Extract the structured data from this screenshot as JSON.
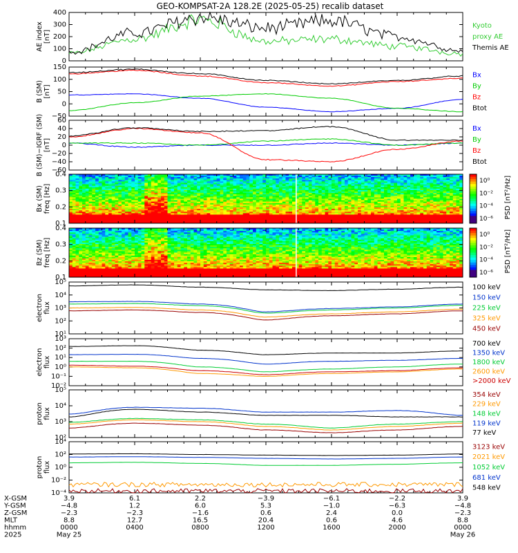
{
  "title": "GEO-KOMPSAT-2A 128.2E (2025-05-25) recalib dataset",
  "colors": {
    "black": "#000000",
    "blue": "#0000ff",
    "green": "#00cc00",
    "red": "#ff0000",
    "lime": "#33dd33",
    "orange": "#ff9900",
    "darkred": "#990000",
    "navy": "#0033cc"
  },
  "panels": [
    {
      "id": "ae",
      "ylabel": [
        "AE index",
        "[nT]"
      ],
      "ticks": [
        "400",
        "300",
        "200",
        "100",
        "0"
      ],
      "legend": [
        {
          "text": "Kyoto",
          "color": "#33cc33"
        },
        {
          "text": "proxy AE",
          "color": "#33cc33"
        },
        {
          "text": "Themis AE",
          "color": "#000000"
        }
      ]
    },
    {
      "id": "bsm",
      "ylabel": [
        "B (SM)",
        "[nT]"
      ],
      "ticks": [
        "150",
        "100",
        "50",
        "0",
        "−50"
      ],
      "legend": [
        {
          "text": "Bx",
          "color": "#0000ff"
        },
        {
          "text": "By",
          "color": "#00cc00"
        },
        {
          "text": "Bz",
          "color": "#ff0000"
        },
        {
          "text": "Btot",
          "color": "#000000"
        }
      ]
    },
    {
      "id": "bigrf",
      "ylabel": [
        "B (SM)−IGRF (SM)",
        "[nT]"
      ],
      "ticks": [
        "60",
        "40",
        "20",
        "0",
        "−20",
        "−40",
        "−60"
      ],
      "legend": [
        {
          "text": "Bx",
          "color": "#0000ff"
        },
        {
          "text": "By",
          "color": "#00cc00"
        },
        {
          "text": "Bz",
          "color": "#ff0000"
        },
        {
          "text": "Btot",
          "color": "#000000"
        }
      ]
    },
    {
      "id": "specx",
      "ylabel": [
        "Bx (SM)",
        "freq [Hz]"
      ],
      "ticks": [
        "0.4",
        "0.3",
        "0.2",
        "0.1"
      ],
      "cbar": {
        "label": "PSD [nT²/Hz]",
        "ticks": [
          "10⁰",
          "10⁻²",
          "10⁻⁴",
          "10⁻⁶"
        ],
        "top": "10⁰"
      }
    },
    {
      "id": "specz",
      "ylabel": [
        "Bz (SM)",
        "freq [Hz]"
      ],
      "ticks": [
        "0.4",
        "0.3",
        "0.2",
        "0.1"
      ],
      "cbar": {
        "label": "PSD [nT²/Hz]",
        "ticks": [
          "10⁰",
          "10⁻²",
          "10⁻⁴",
          "10⁻⁶"
        ],
        "top": "10⁰"
      }
    },
    {
      "id": "elow",
      "ylabel": [
        "electron",
        "flux"
      ],
      "ticks": [
        "10⁵",
        "10⁴",
        "10³",
        "10²",
        "10¹"
      ],
      "legend": [
        {
          "text": "100 keV",
          "color": "#000000"
        },
        {
          "text": "150 keV",
          "color": "#0033cc"
        },
        {
          "text": "225 keV",
          "color": "#00cc33"
        },
        {
          "text": "325 keV",
          "color": "#ff9900"
        },
        {
          "text": "450 keV",
          "color": "#990000"
        }
      ]
    },
    {
      "id": "ehigh",
      "ylabel": [
        "electron",
        "flux"
      ],
      "ticks": [
        "10³",
        "10²",
        "10¹",
        "10⁰",
        "10⁻¹",
        "10⁻²"
      ],
      "legend": [
        {
          "text": "700 keV",
          "color": "#000000"
        },
        {
          "text": "1350 keV",
          "color": "#0033cc"
        },
        {
          "text": "1800 keV",
          "color": "#00cc33"
        },
        {
          "text": "2600 keV",
          "color": "#ff9900"
        },
        {
          "text": ">2000 keV",
          "color": "#cc0000"
        }
      ]
    },
    {
      "id": "plow",
      "ylabel": [
        "proton",
        "flux"
      ],
      "ticks": [
        "10⁵",
        "10⁴",
        "10³",
        "10²"
      ],
      "legend": [
        {
          "text": "354 keV",
          "color": "#990000"
        },
        {
          "text": "229 keV",
          "color": "#ff9900"
        },
        {
          "text": "148 keV",
          "color": "#00cc33"
        },
        {
          "text": "119 keV",
          "color": "#0033cc"
        },
        {
          "text": "77 keV",
          "color": "#000000"
        }
      ]
    },
    {
      "id": "phigh",
      "ylabel": [
        "proton",
        "flux"
      ],
      "ticks": [
        "10⁴",
        "10²",
        "10⁰",
        "10⁻²",
        "10⁻⁴"
      ],
      "legend": [
        {
          "text": "3123 keV",
          "color": "#990000"
        },
        {
          "text": "2021 keV",
          "color": "#ff9900"
        },
        {
          "text": "1052 keV",
          "color": "#00cc33"
        },
        {
          "text": "681 keV",
          "color": "#0033cc"
        },
        {
          "text": "548 keV",
          "color": "#000000"
        }
      ]
    }
  ],
  "footer": {
    "row_labels": [
      "X-GSM",
      "Y-GSM",
      "Z-GSM",
      "MLT",
      "hhmm",
      "2025"
    ],
    "columns": [
      [
        "3.9",
        "−4.8",
        "−2.3",
        "8.8",
        "0000",
        "May 25"
      ],
      [
        "6.1",
        "1.2",
        "−2.3",
        "12.7",
        "0400",
        ""
      ],
      [
        "2.2",
        "6.0",
        "−1.6",
        "16.5",
        "0800",
        ""
      ],
      [
        "−3.9",
        "5.3",
        "0.6",
        "20.4",
        "1200",
        ""
      ],
      [
        "−6.1",
        "−1.0",
        "2.4",
        "0.6",
        "1600",
        ""
      ],
      [
        "−2.2",
        "−6.3",
        "0.0",
        "4.6",
        "2000",
        ""
      ],
      [
        "3.9",
        "−4.8",
        "−2.3",
        "8.8",
        "0000",
        "May 26"
      ]
    ]
  },
  "chart_data": [
    {
      "type": "line",
      "title": "GEO-KOMPSAT-2A 128.2E (2025-05-25) recalib dataset",
      "ylabel": "AE index [nT]",
      "ylim": [
        0,
        400
      ],
      "x": [
        "0000",
        "0400",
        "0800",
        "1200",
        "1600",
        "2000",
        "0000"
      ],
      "series": [
        {
          "name": "Kyoto proxy AE",
          "values": [
            60,
            180,
            340,
            160,
            180,
            120,
            60
          ]
        },
        {
          "name": "Themis AE",
          "values": [
            70,
            230,
            360,
            270,
            330,
            200,
            80
          ]
        }
      ]
    },
    {
      "type": "line",
      "ylabel": "B (SM) [nT]",
      "ylim": [
        -60,
        160
      ],
      "x": [
        "0000",
        "0400",
        "0800",
        "1200",
        "1600",
        "2000",
        "0000"
      ],
      "series": [
        {
          "name": "Bx",
          "values": [
            35,
            40,
            20,
            -20,
            -40,
            -25,
            15
          ]
        },
        {
          "name": "By",
          "values": [
            -35,
            0,
            30,
            40,
            20,
            -25,
            -40
          ]
        },
        {
          "name": "Bz",
          "values": [
            130,
            145,
            120,
            90,
            75,
            95,
            110
          ]
        },
        {
          "name": "Btot",
          "values": [
            135,
            150,
            130,
            100,
            85,
            100,
            120
          ]
        }
      ]
    },
    {
      "type": "line",
      "ylabel": "B (SM)-IGRF (SM) [nT]",
      "ylim": [
        -60,
        60
      ],
      "x": [
        "0000",
        "0400",
        "0800",
        "1200",
        "1600",
        "2000",
        "0000"
      ],
      "series": [
        {
          "name": "Bx",
          "values": [
            5,
            -5,
            0,
            0,
            5,
            0,
            5
          ]
        },
        {
          "name": "By",
          "values": [
            5,
            5,
            0,
            10,
            15,
            0,
            5
          ]
        },
        {
          "name": "Bz",
          "values": [
            20,
            40,
            30,
            -35,
            -40,
            -10,
            10
          ]
        },
        {
          "name": "Btot",
          "values": [
            22,
            42,
            33,
            35,
            45,
            12,
            12
          ]
        }
      ]
    },
    {
      "type": "heatmap",
      "ylabel": "Bx (SM) freq [Hz]",
      "ylim": [
        0.05,
        0.5
      ],
      "colorbar": "PSD [nT²/Hz]"
    },
    {
      "type": "heatmap",
      "ylabel": "Bz (SM) freq [Hz]",
      "ylim": [
        0.05,
        0.5
      ],
      "colorbar": "PSD [nT²/Hz]"
    },
    {
      "type": "line",
      "ylabel": "electron flux",
      "log": true,
      "ylim": [
        "10¹",
        "10⁵"
      ],
      "x": [
        "0000",
        "0400",
        "0800",
        "1200",
        "1600",
        "2000",
        "0000"
      ],
      "series": [
        {
          "name": "100 keV",
          "values": [
            50000,
            60000,
            40000,
            25000,
            22000,
            28000,
            40000
          ]
        },
        {
          "name": "150 keV",
          "values": [
            3000,
            3200,
            2000,
            500,
            900,
            1200,
            2000
          ]
        },
        {
          "name": "225 keV",
          "values": [
            2000,
            2200,
            1500,
            400,
            700,
            1000,
            1600
          ]
        },
        {
          "name": "325 keV",
          "values": [
            1000,
            1100,
            700,
            200,
            350,
            500,
            800
          ]
        },
        {
          "name": "450 keV",
          "values": [
            600,
            700,
            450,
            120,
            250,
            350,
            600
          ]
        }
      ]
    },
    {
      "type": "line",
      "ylabel": "electron flux",
      "log": true,
      "ylim": [
        "10⁻²",
        "10³"
      ],
      "x": [
        "0000",
        "0400",
        "0800",
        "1200",
        "1600",
        "2000",
        "0000"
      ],
      "series": [
        {
          "name": "700 keV",
          "values": [
            150,
            180,
            60,
            20,
            30,
            30,
            50
          ]
        },
        {
          "name": "1350 keV",
          "values": [
            20,
            22,
            8,
            2,
            4,
            5,
            8
          ]
        },
        {
          "name": "1800 keV",
          "values": [
            4,
            4,
            1,
            0.3,
            0.6,
            1,
            2
          ]
        },
        {
          "name": "2600 keV",
          "values": [
            1,
            0.8,
            0.2,
            0.1,
            0.2,
            0.3,
            0.6
          ]
        },
        {
          "name": ">2000 keV",
          "values": [
            1.5,
            1.2,
            0.4,
            0.15,
            0.3,
            0.4,
            0.8
          ]
        }
      ]
    },
    {
      "type": "line",
      "ylabel": "proton flux",
      "log": true,
      "ylim": [
        "10²",
        "10⁵"
      ],
      "x": [
        "0000",
        "0400",
        "0800",
        "1200",
        "1600",
        "2000",
        "0000"
      ],
      "series": [
        {
          "name": "354 keV",
          "values": [
            400,
            800,
            600,
            300,
            200,
            300,
            500
          ]
        },
        {
          "name": "229 keV",
          "values": [
            700,
            1300,
            1000,
            500,
            300,
            500,
            800
          ]
        },
        {
          "name": "148 keV",
          "values": [
            900,
            1600,
            1300,
            700,
            400,
            700,
            1000
          ]
        },
        {
          "name": "119 keV",
          "values": [
            3000,
            8000,
            7000,
            4000,
            4000,
            5000,
            2500
          ]
        },
        {
          "name": "77 keV",
          "values": [
            2000,
            6000,
            4000,
            2500,
            2500,
            2000,
            2000
          ]
        }
      ]
    },
    {
      "type": "line",
      "ylabel": "proton flux",
      "log": true,
      "ylim": [
        "10⁻⁴",
        "10⁴"
      ],
      "x": [
        "0000",
        "0400",
        "0800",
        "1200",
        "1600",
        "2000",
        "0000"
      ],
      "series": [
        {
          "name": "3123 keV",
          "values": [
            0.0002,
            0.0002,
            0.0002,
            0.0002,
            0.0002,
            0.0002,
            0.0002
          ]
        },
        {
          "name": "2021 keV",
          "values": [
            0.002,
            0.002,
            0.002,
            0.002,
            0.002,
            0.002,
            0.002
          ]
        },
        {
          "name": "1052 keV",
          "values": [
            5,
            6,
            4,
            2,
            2,
            3,
            5
          ]
        },
        {
          "name": "681 keV",
          "values": [
            40,
            45,
            35,
            25,
            20,
            25,
            40
          ]
        },
        {
          "name": "548 keV",
          "values": [
            120,
            130,
            100,
            80,
            70,
            80,
            120
          ]
        }
      ]
    }
  ]
}
